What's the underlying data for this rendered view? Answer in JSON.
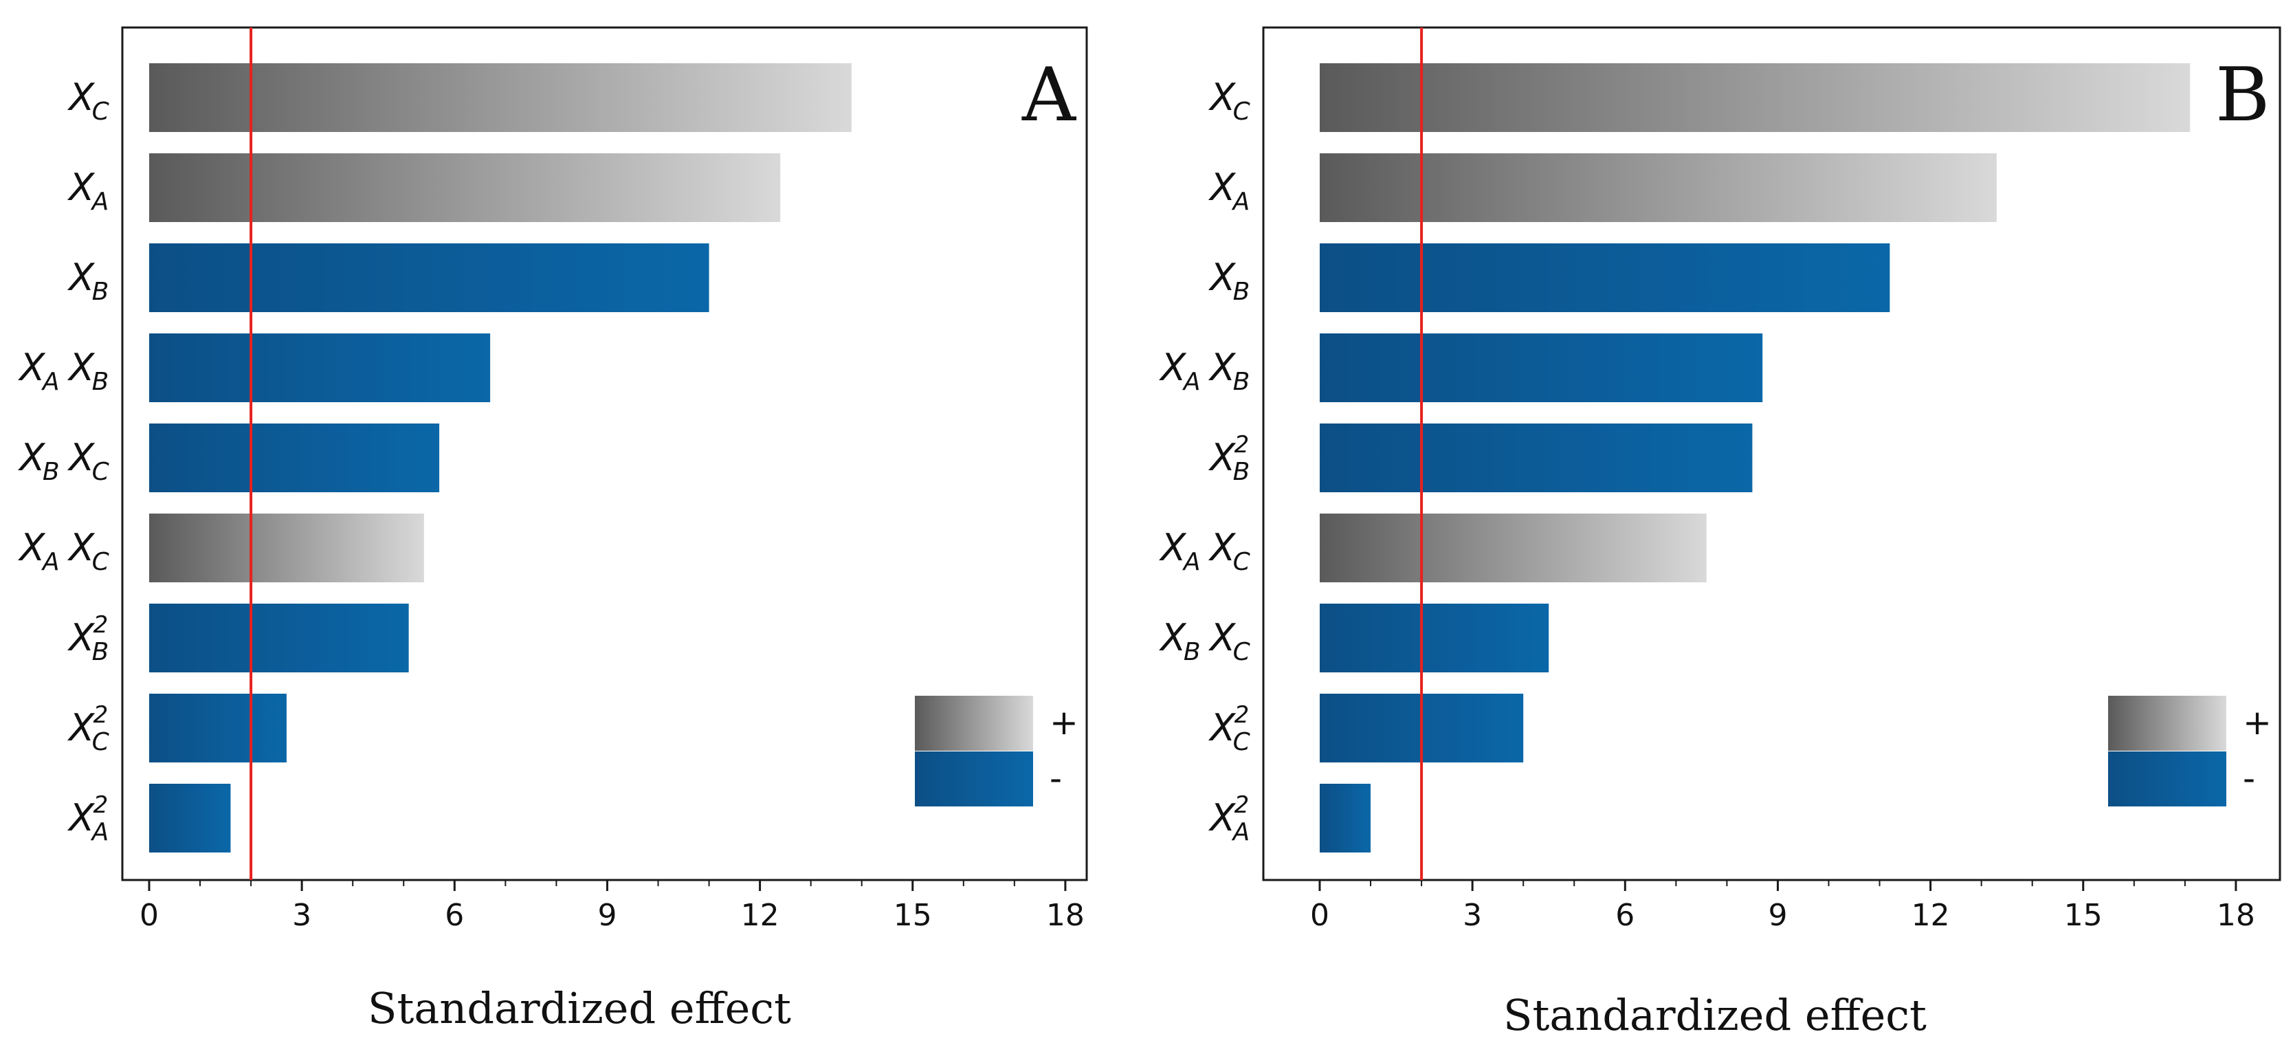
{
  "chart_data": [
    {
      "type": "bar",
      "orientation": "horizontal",
      "panel_label": "A",
      "xlabel": "Standardized effect",
      "xlim": [
        0,
        18
      ],
      "xticks": [
        0,
        3,
        6,
        9,
        12,
        15,
        18
      ],
      "reference_line": 2.0,
      "legend": {
        "position": "bottom-right",
        "entries": [
          {
            "label": "+",
            "sign": "+"
          },
          {
            "label": "-",
            "sign": "-"
          }
        ]
      },
      "colors": {
        "positive_dark": "#5a5a5a",
        "positive_light": "#d9d9d9",
        "negative_dark": "#0c4f86",
        "negative_light": "#0b67a8",
        "reference": "#e8211d"
      },
      "bars": [
        {
          "term": "C",
          "power": "",
          "sign": "+",
          "value": 13.8
        },
        {
          "term": "A",
          "power": "",
          "sign": "+",
          "value": 12.4
        },
        {
          "term": "B",
          "power": "",
          "sign": "-",
          "value": 11.0
        },
        {
          "term": "AB",
          "power": "",
          "sign": "-",
          "value": 6.7
        },
        {
          "term": "BC",
          "power": "",
          "sign": "-",
          "value": 5.7
        },
        {
          "term": "AC",
          "power": "",
          "sign": "+",
          "value": 5.4
        },
        {
          "term": "B",
          "power": "2",
          "sign": "-",
          "value": 5.1
        },
        {
          "term": "C",
          "power": "2",
          "sign": "-",
          "value": 2.7
        },
        {
          "term": "A",
          "power": "2",
          "sign": "-",
          "value": 1.6
        }
      ]
    },
    {
      "type": "bar",
      "orientation": "horizontal",
      "panel_label": "B",
      "xlabel": "Standardized effect",
      "xlim": [
        0,
        18
      ],
      "xticks": [
        0,
        3,
        6,
        9,
        12,
        15,
        18
      ],
      "reference_line": 2.0,
      "legend": {
        "position": "bottom-right",
        "entries": [
          {
            "label": "+",
            "sign": "+"
          },
          {
            "label": "-",
            "sign": "-"
          }
        ]
      },
      "colors": {
        "positive_dark": "#5a5a5a",
        "positive_light": "#d9d9d9",
        "negative_dark": "#0c4f86",
        "negative_light": "#0b67a8",
        "reference": "#e8211d"
      },
      "bars": [
        {
          "term": "C",
          "power": "",
          "sign": "+",
          "value": 17.1
        },
        {
          "term": "A",
          "power": "",
          "sign": "+",
          "value": 13.3
        },
        {
          "term": "B",
          "power": "",
          "sign": "-",
          "value": 11.2
        },
        {
          "term": "AB",
          "power": "",
          "sign": "-",
          "value": 8.7
        },
        {
          "term": "B",
          "power": "2",
          "sign": "-",
          "value": 8.5
        },
        {
          "term": "AC",
          "power": "",
          "sign": "+",
          "value": 7.6
        },
        {
          "term": "BC",
          "power": "",
          "sign": "-",
          "value": 4.5
        },
        {
          "term": "C",
          "power": "2",
          "sign": "-",
          "value": 4.0
        },
        {
          "term": "A",
          "power": "2",
          "sign": "-",
          "value": 1.0
        }
      ]
    }
  ]
}
